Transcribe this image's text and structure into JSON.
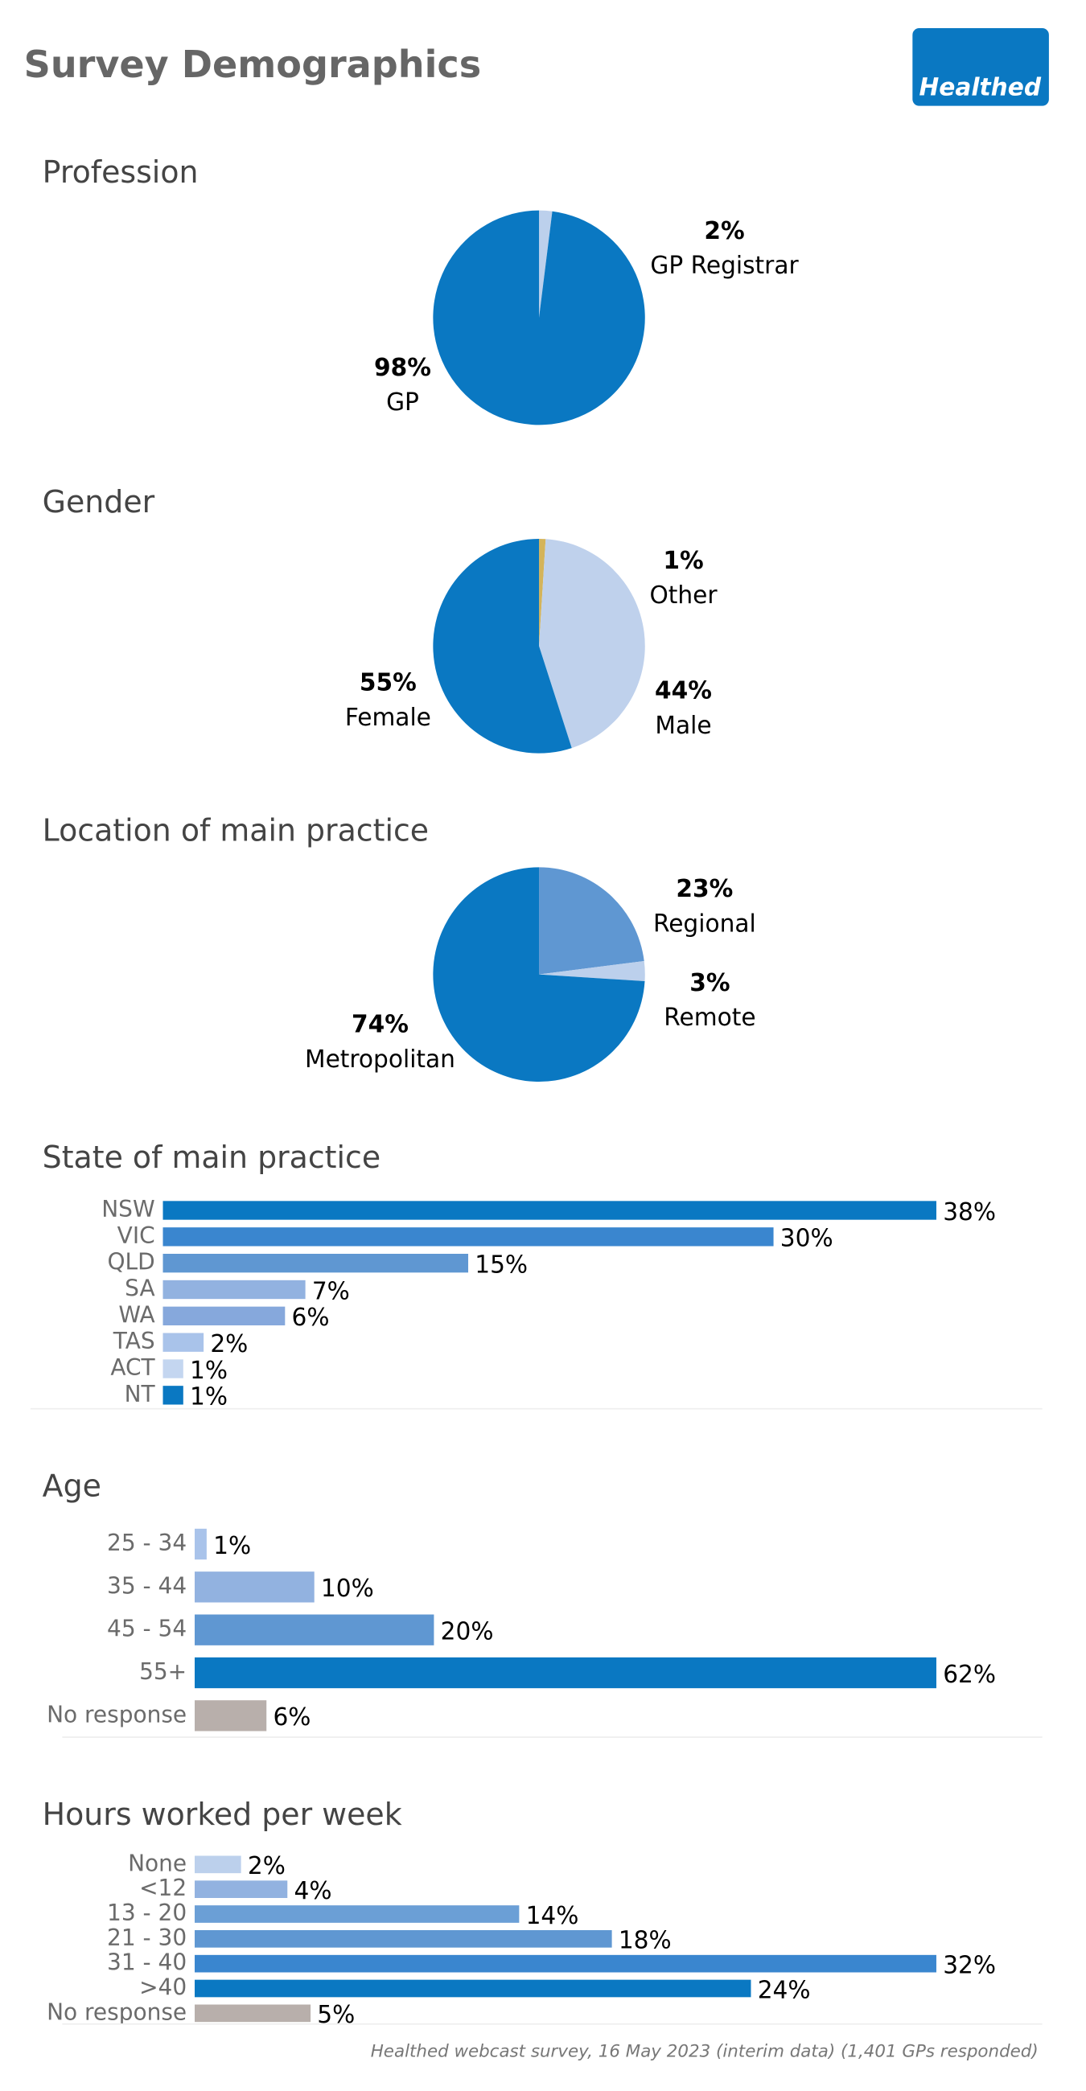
{
  "header": {
    "title": "Survey Demographics",
    "logo": "Healthed"
  },
  "footer": "Healthed webcast survey, 16 May 2023 (interim data) (1,401 GPs responded)",
  "chart_data": [
    {
      "type": "pie",
      "title": "Profession",
      "categories": [
        "GP Registrar",
        "GP"
      ],
      "values": [
        2,
        98
      ],
      "value_labels": [
        "2%",
        "98%"
      ],
      "colors": [
        "#bcd0ec",
        "#0a78c2"
      ]
    },
    {
      "type": "pie",
      "title": "Gender",
      "categories": [
        "Other",
        "Male",
        "Female"
      ],
      "values": [
        1,
        44,
        55
      ],
      "value_labels": [
        "1%",
        "44%",
        "55%"
      ],
      "colors": [
        "#d4b45a",
        "#bfd1ec",
        "#0a78c2"
      ]
    },
    {
      "type": "pie",
      "title": "Location of main practice",
      "categories": [
        "Regional",
        "Remote",
        "Metropolitan"
      ],
      "values": [
        23,
        3,
        74
      ],
      "value_labels": [
        "23%",
        "3%",
        "74%"
      ],
      "colors": [
        "#5f97d2",
        "#bcd0ec",
        "#0a78c2"
      ]
    },
    {
      "type": "barh",
      "title": "State of main practice",
      "categories": [
        "NSW",
        "VIC",
        "QLD",
        "SA",
        "WA",
        "TAS",
        "ACT",
        "NT"
      ],
      "values": [
        38,
        30,
        15,
        7,
        6,
        2,
        1,
        1
      ],
      "value_labels": [
        "38%",
        "30%",
        "15%",
        "7%",
        "6%",
        "2%",
        "1%",
        "1%"
      ],
      "colors": [
        "#0a78c2",
        "#3a86cf",
        "#5f97d2",
        "#92b2e0",
        "#86a8dc",
        "#a9c3ea",
        "#c4d6f0",
        "#0a78c2"
      ]
    },
    {
      "type": "barh",
      "title": "Age",
      "categories": [
        "25 - 34",
        "35 - 44",
        "45 - 54",
        "55+",
        "No response"
      ],
      "values": [
        1,
        10,
        20,
        62,
        6
      ],
      "value_labels": [
        "1%",
        "10%",
        "20%",
        "62%",
        "6%"
      ],
      "colors": [
        "#a9c3ea",
        "#92b2e0",
        "#5f97d2",
        "#0a78c2",
        "#b8afab"
      ]
    },
    {
      "type": "barh",
      "title": "Hours worked per week",
      "categories": [
        "None",
        "<12",
        "13 - 20",
        "21 - 30",
        "31 - 40",
        ">40",
        "No response"
      ],
      "values": [
        2,
        4,
        14,
        18,
        32,
        24,
        5
      ],
      "value_labels": [
        "2%",
        "4%",
        "14%",
        "18%",
        "32%",
        "24%",
        "5%"
      ],
      "colors": [
        "#bcd0ec",
        "#92b2e0",
        "#6b9fd6",
        "#5f97d2",
        "#3a86cf",
        "#0a78c2",
        "#b8afab"
      ]
    }
  ]
}
